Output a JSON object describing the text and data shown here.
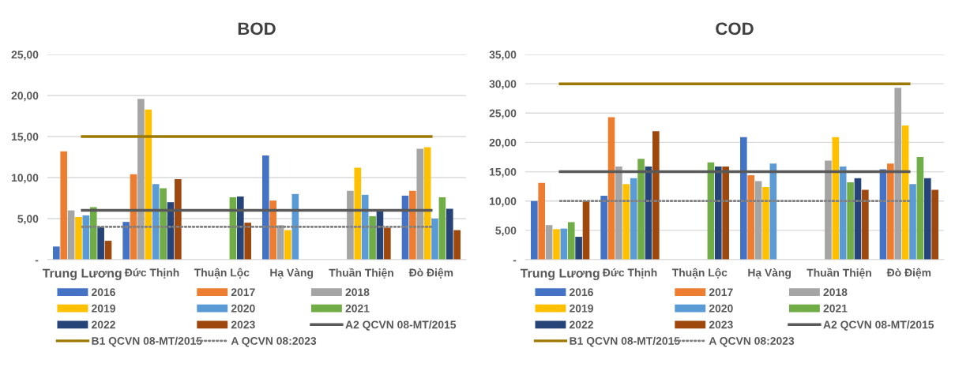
{
  "chart_data": [
    {
      "type": "bar",
      "title": "BOD",
      "categories": [
        "Trung Lương",
        "Đức Thịnh",
        "Thuận Lộc",
        "Hạ Vàng",
        "Thuần Thiện",
        "Đò Điệm"
      ],
      "ylim": [
        0,
        25
      ],
      "yticks": [
        {
          "value": 0,
          "label": "-"
        },
        {
          "value": 5,
          "label": "5,00"
        },
        {
          "value": 10,
          "label": "10,00"
        },
        {
          "value": 15,
          "label": "15,00"
        },
        {
          "value": 20,
          "label": "20,00"
        },
        {
          "value": 25,
          "label": "25,00"
        }
      ],
      "grid": "y",
      "legend": "bottom",
      "series": [
        {
          "name": "2016",
          "color": "#4472c4",
          "values": [
            1.6,
            4.6,
            null,
            12.7,
            null,
            7.8
          ]
        },
        {
          "name": "2017",
          "color": "#ed7d31",
          "values": [
            13.2,
            10.4,
            null,
            7.2,
            null,
            8.4
          ]
        },
        {
          "name": "2018",
          "color": "#a5a5a5",
          "values": [
            6.0,
            19.6,
            null,
            4.2,
            8.4,
            13.5
          ]
        },
        {
          "name": "2019",
          "color": "#ffc000",
          "values": [
            5.2,
            18.3,
            null,
            3.6,
            11.2,
            13.7
          ]
        },
        {
          "name": "2020",
          "color": "#5b9bd5",
          "values": [
            5.4,
            9.2,
            null,
            8.0,
            7.9,
            5.0
          ]
        },
        {
          "name": "2021",
          "color": "#70ad47",
          "values": [
            6.4,
            8.7,
            7.6,
            null,
            5.3,
            7.6
          ]
        },
        {
          "name": "2022",
          "color": "#264478",
          "values": [
            4.0,
            7.0,
            7.7,
            null,
            5.9,
            6.2
          ]
        },
        {
          "name": "2023",
          "color": "#9e480e",
          "values": [
            2.3,
            9.8,
            4.5,
            null,
            3.9,
            3.6
          ]
        },
        {
          "name": "A2 QCVN 08-MT/2015",
          "type": "line",
          "color": "#595959",
          "line_style": "solid",
          "values": [
            6,
            6,
            6,
            6,
            6,
            6
          ]
        },
        {
          "name": "B1 QCVN 08-MT/2015",
          "type": "line",
          "color": "#9c7800",
          "line_style": "solid",
          "values": [
            15,
            15,
            15,
            15,
            15,
            15
          ]
        },
        {
          "name": "A QCVN 08:2023",
          "type": "line",
          "color": "#808080",
          "line_style": "dotted",
          "values": [
            4,
            4,
            4,
            4,
            4,
            4
          ]
        }
      ]
    },
    {
      "type": "bar",
      "title": "COD",
      "categories": [
        "Trung Lương",
        "Đức Thịnh",
        "Thuận Lộc",
        "Hạ Vàng",
        "Thuần Thiện",
        "Đò Điệm"
      ],
      "ylim": [
        0,
        35
      ],
      "yticks": [
        {
          "value": 0,
          "label": "-"
        },
        {
          "value": 5,
          "label": "5,00"
        },
        {
          "value": 10,
          "label": "10,00"
        },
        {
          "value": 15,
          "label": "15,00"
        },
        {
          "value": 20,
          "label": "20,00"
        },
        {
          "value": 25,
          "label": "25,00"
        },
        {
          "value": 30,
          "label": "30,00"
        },
        {
          "value": 35,
          "label": "35,00"
        }
      ],
      "grid": "y",
      "legend": "bottom",
      "series": [
        {
          "name": "2016",
          "color": "#4472c4",
          "values": [
            10.0,
            10.9,
            null,
            20.9,
            null,
            15.4
          ]
        },
        {
          "name": "2017",
          "color": "#ed7d31",
          "values": [
            13.1,
            24.3,
            null,
            14.4,
            null,
            16.4
          ]
        },
        {
          "name": "2018",
          "color": "#a5a5a5",
          "values": [
            5.9,
            15.9,
            null,
            13.4,
            16.9,
            29.3
          ]
        },
        {
          "name": "2019",
          "color": "#ffc000",
          "values": [
            5.2,
            12.9,
            null,
            12.4,
            20.9,
            22.9
          ]
        },
        {
          "name": "2020",
          "color": "#5b9bd5",
          "values": [
            5.3,
            13.9,
            null,
            16.4,
            15.9,
            12.9
          ]
        },
        {
          "name": "2021",
          "color": "#70ad47",
          "values": [
            6.4,
            17.2,
            16.6,
            null,
            13.2,
            17.5
          ]
        },
        {
          "name": "2022",
          "color": "#264478",
          "values": [
            3.9,
            15.9,
            15.9,
            null,
            13.9,
            13.9
          ]
        },
        {
          "name": "2023",
          "color": "#9e480e",
          "values": [
            10.0,
            21.9,
            15.9,
            null,
            11.9,
            11.9
          ]
        },
        {
          "name": "A2 QCVN 08-MT/2015",
          "type": "line",
          "color": "#595959",
          "line_style": "solid",
          "values": [
            15,
            15,
            15,
            15,
            15,
            15
          ]
        },
        {
          "name": "B1 QCVN 08-MT/2015",
          "type": "line",
          "color": "#9c7800",
          "line_style": "solid",
          "values": [
            30,
            30,
            30,
            30,
            30,
            30
          ]
        },
        {
          "name": "A QCVN 08:2023",
          "type": "line",
          "color": "#808080",
          "line_style": "dotted",
          "values": [
            10,
            10,
            10,
            10,
            10,
            10
          ]
        }
      ]
    }
  ]
}
